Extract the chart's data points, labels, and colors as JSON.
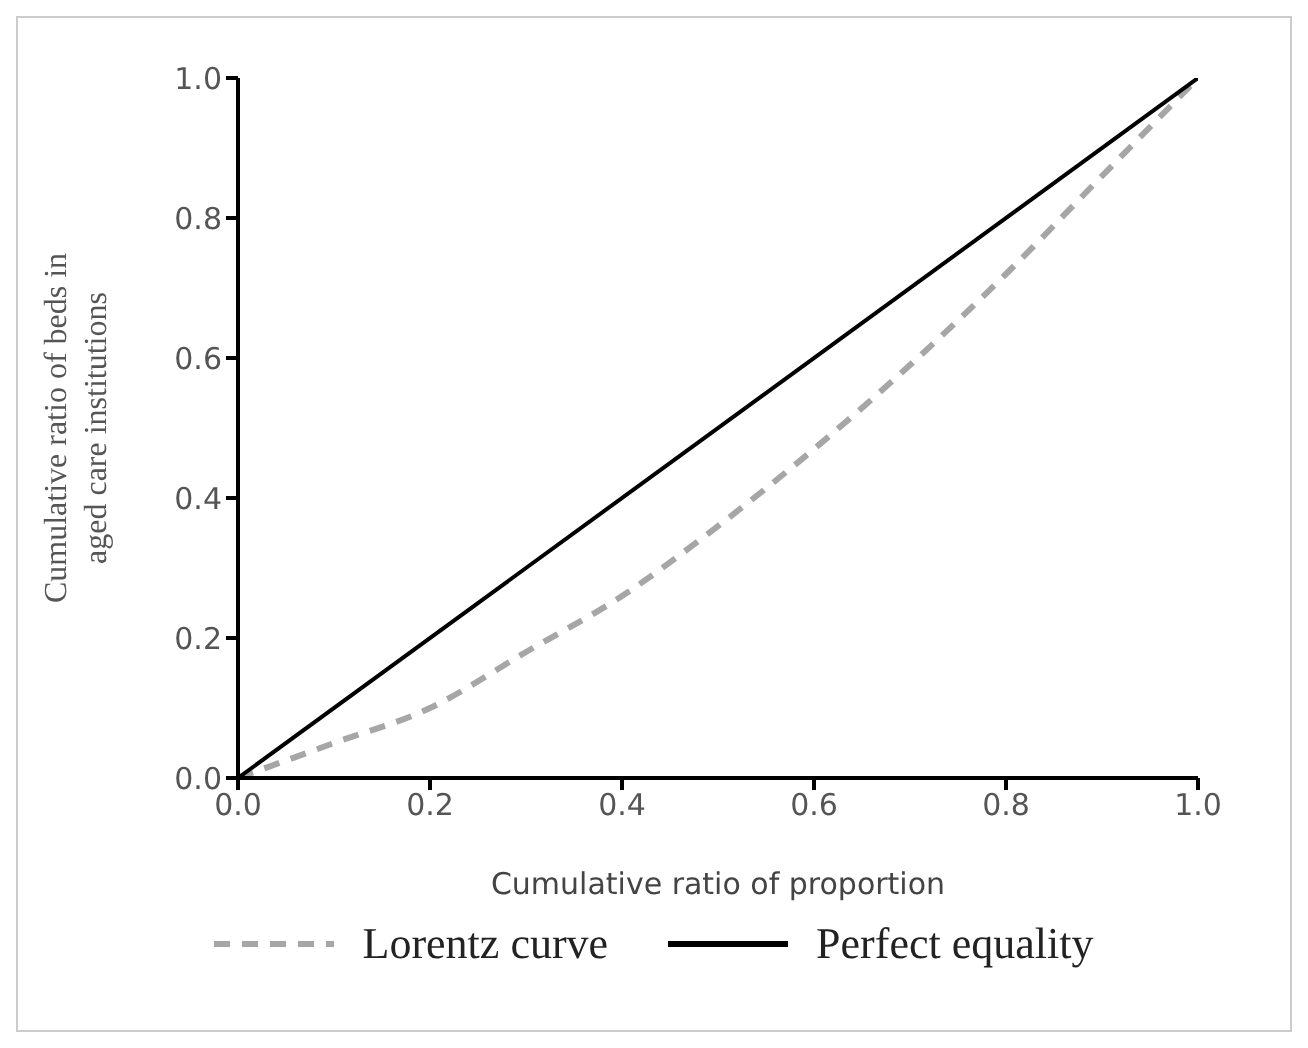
{
  "chart_data": {
    "type": "line",
    "xlabel": "Cumulative ratio of proportion",
    "ylabel": "Cumulative ratio of beds in aged care institutions",
    "xlim": [
      0,
      1
    ],
    "ylim": [
      0,
      1
    ],
    "xticks": [
      {
        "value": 0,
        "label": "0.0"
      },
      {
        "value": 0.2,
        "label": "0.2"
      },
      {
        "value": 0.4,
        "label": "0.4"
      },
      {
        "value": 0.6,
        "label": "0.6"
      },
      {
        "value": 0.8,
        "label": "0.8"
      },
      {
        "value": 1,
        "label": "1.0"
      }
    ],
    "yticks": [
      {
        "value": 0,
        "label": "0.0"
      },
      {
        "value": 0.2,
        "label": "0.2"
      },
      {
        "value": 0.4,
        "label": "0.4"
      },
      {
        "value": 0.6,
        "label": "0.6"
      },
      {
        "value": 0.8,
        "label": "0.8"
      },
      {
        "value": 1,
        "label": "1.0"
      }
    ],
    "series": [
      {
        "name": "Lorentz curve",
        "color": "#a6a6a6",
        "line_style": "dashed",
        "x": [
          0,
          0.1,
          0.2,
          0.3,
          0.4,
          0.5,
          0.6,
          0.7,
          0.8,
          0.9,
          1
        ],
        "values": [
          0,
          0.05,
          0.1,
          0.18,
          0.26,
          0.36,
          0.47,
          0.59,
          0.72,
          0.86,
          1
        ]
      },
      {
        "name": "Perfect equality",
        "color": "#000000",
        "line_style": "solid",
        "x": [
          0,
          1
        ],
        "values": [
          0,
          1
        ]
      }
    ],
    "grid": false,
    "legend": "bottom",
    "marker": "none"
  }
}
